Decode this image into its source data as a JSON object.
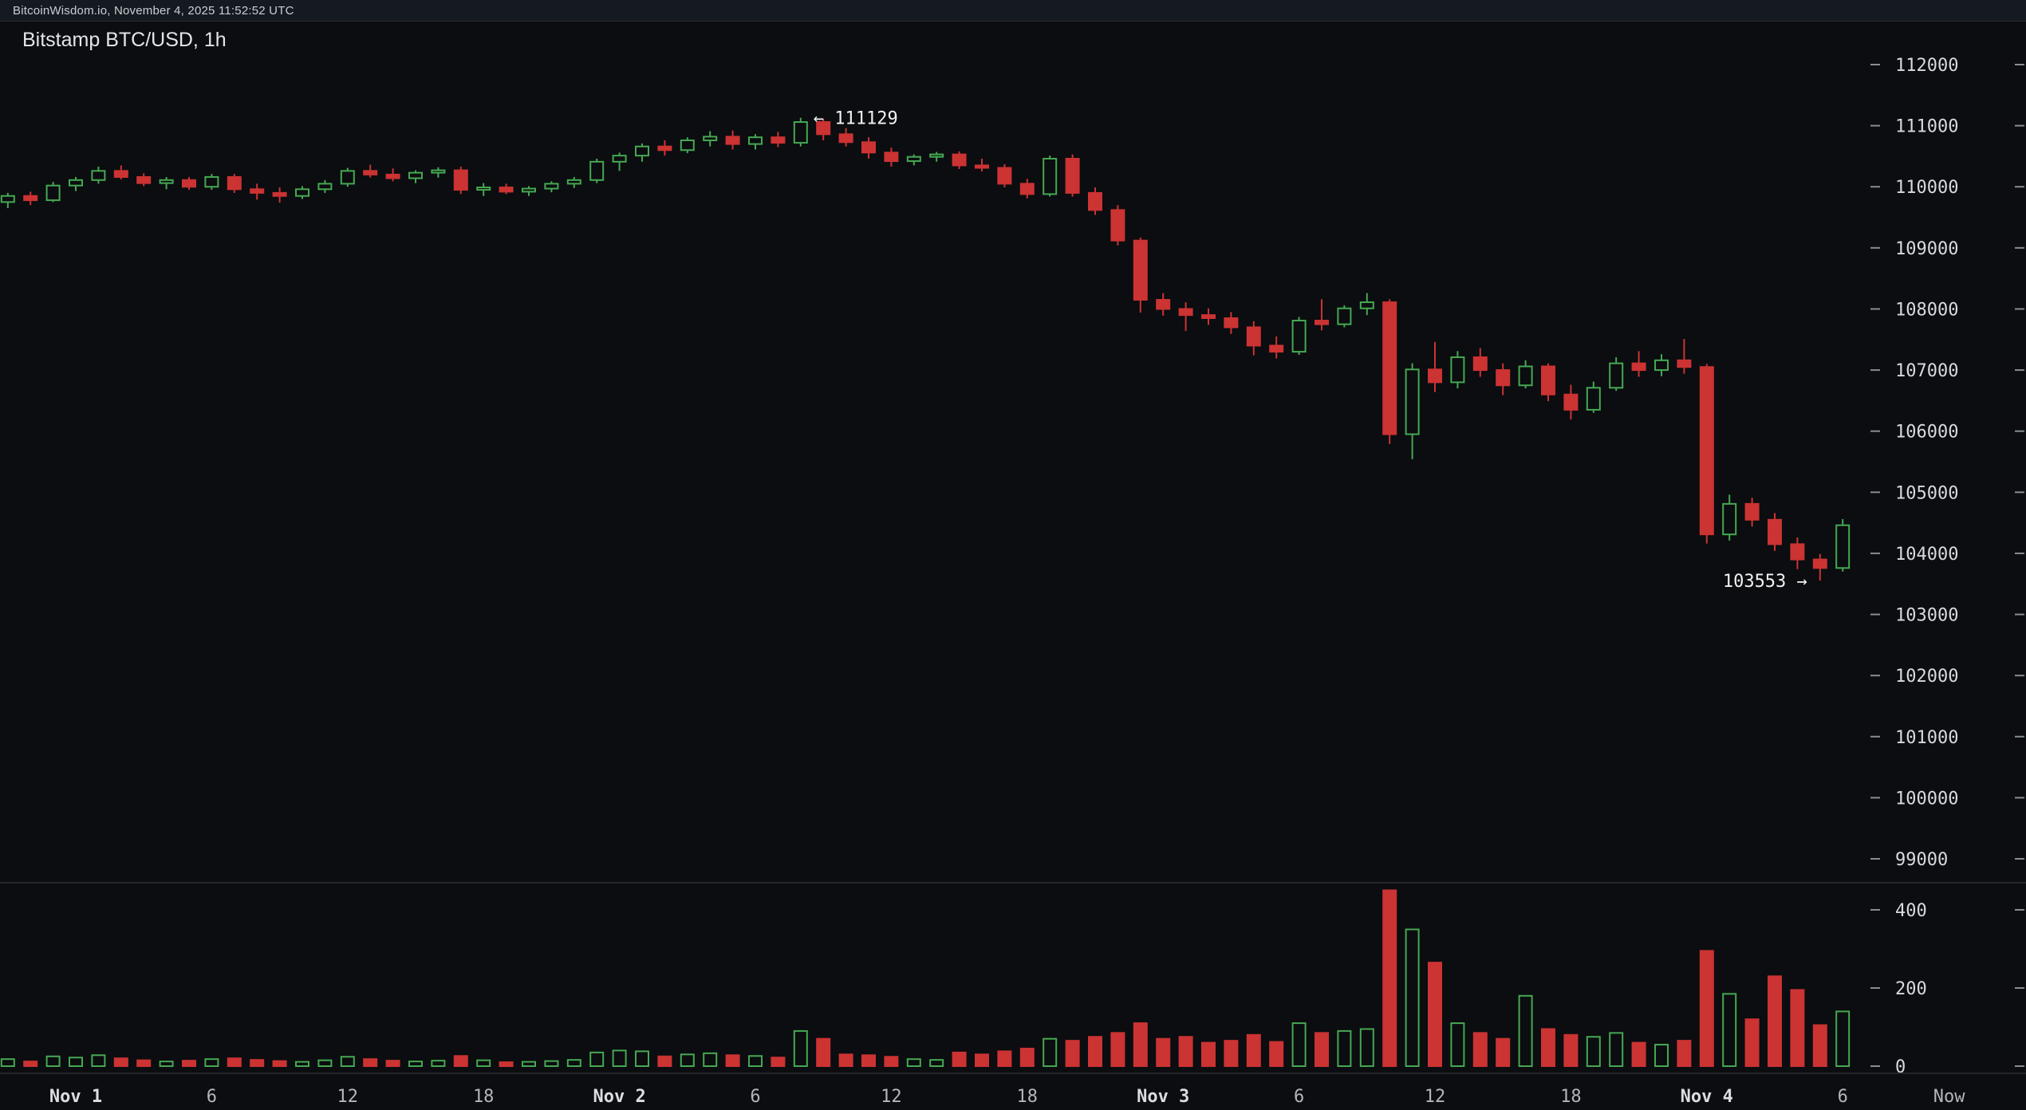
{
  "topbar": {
    "text": "BitcoinWisdom.io, November 4, 2025 11:52:52 UTC"
  },
  "chart": {
    "title": "Bitstamp BTC/USD, 1h"
  },
  "annotations": {
    "high": {
      "text": "← 111129",
      "price": 111129,
      "t": 32
    },
    "low": {
      "text": "103553 →",
      "price": 103553,
      "t": 77
    }
  },
  "colors": {
    "background": "#0b0d10",
    "up": "#46a852",
    "down": "#cc3333",
    "tick": "#878d94",
    "divider": "#23272d"
  },
  "chart_data": {
    "type": "candlestick",
    "title": "Bitstamp BTC/USD, 1h",
    "exchange": "Bitstamp",
    "pair": "BTC/USD",
    "interval": "1h",
    "annotated_high": 111129,
    "annotated_low": 103553,
    "price_axis": {
      "max_label": 112000,
      "min_label": 99000,
      "step": 1000,
      "labels": [
        "112000",
        "111000",
        "110000",
        "109000",
        "108000",
        "107000",
        "106000",
        "105000",
        "104000",
        "103000",
        "102000",
        "101000",
        "100000",
        "99000"
      ]
    },
    "volume_axis": {
      "labels": [
        "400",
        "200",
        "0"
      ],
      "max": 400,
      "min": 0
    },
    "time_axis": [
      {
        "t": 0,
        "label": "Nov 1",
        "major": true
      },
      {
        "t": 6,
        "label": "6"
      },
      {
        "t": 12,
        "label": "12"
      },
      {
        "t": 18,
        "label": "18"
      },
      {
        "t": 24,
        "label": "Nov 2",
        "major": true
      },
      {
        "t": 30,
        "label": "6"
      },
      {
        "t": 36,
        "label": "12"
      },
      {
        "t": 42,
        "label": "18"
      },
      {
        "t": 48,
        "label": "Nov 3",
        "major": true
      },
      {
        "t": 54,
        "label": "6"
      },
      {
        "t": 60,
        "label": "12"
      },
      {
        "t": 66,
        "label": "18"
      },
      {
        "t": 72,
        "label": "Nov 4",
        "major": true
      },
      {
        "t": 78,
        "label": "6"
      },
      {
        "t": 82.7,
        "label": "Now",
        "major": false
      }
    ],
    "candles_format": [
      "hours_from_nov1_00utc",
      "open",
      "high",
      "low",
      "close",
      "volume"
    ],
    "candles": [
      [
        -3,
        109750,
        109900,
        109650,
        109850,
        18
      ],
      [
        -2,
        109850,
        109920,
        109700,
        109780,
        12
      ],
      [
        -1,
        109780,
        110080,
        109750,
        110020,
        25
      ],
      [
        0,
        110020,
        110160,
        109930,
        110110,
        22
      ],
      [
        1,
        110110,
        110330,
        110050,
        110260,
        28
      ],
      [
        2,
        110260,
        110350,
        110120,
        110160,
        20
      ],
      [
        3,
        110160,
        110220,
        110010,
        110060,
        15
      ],
      [
        4,
        110060,
        110160,
        109960,
        110110,
        12
      ],
      [
        5,
        110110,
        110160,
        109950,
        110000,
        14
      ],
      [
        6,
        110000,
        110210,
        109950,
        110160,
        18
      ],
      [
        7,
        110160,
        110210,
        109900,
        109960,
        20
      ],
      [
        8,
        109960,
        110050,
        109790,
        109900,
        16
      ],
      [
        9,
        109900,
        109990,
        109740,
        109850,
        13
      ],
      [
        10,
        109850,
        110010,
        109800,
        109960,
        11
      ],
      [
        11,
        109960,
        110110,
        109900,
        110050,
        15
      ],
      [
        12,
        110050,
        110310,
        110000,
        110260,
        24
      ],
      [
        13,
        110260,
        110360,
        110150,
        110200,
        18
      ],
      [
        14,
        110200,
        110300,
        110090,
        110140,
        14
      ],
      [
        15,
        110140,
        110270,
        110060,
        110230,
        12
      ],
      [
        16,
        110230,
        110320,
        110150,
        110270,
        14
      ],
      [
        17,
        110270,
        110330,
        109880,
        109950,
        26
      ],
      [
        18,
        109950,
        110060,
        109850,
        109990,
        15
      ],
      [
        19,
        109990,
        110050,
        109880,
        109920,
        10
      ],
      [
        20,
        109920,
        110010,
        109850,
        109970,
        11
      ],
      [
        21,
        109970,
        110090,
        109910,
        110050,
        13
      ],
      [
        22,
        110050,
        110160,
        109980,
        110110,
        16
      ],
      [
        23,
        110110,
        110460,
        110060,
        110410,
        35
      ],
      [
        24,
        110410,
        110560,
        110260,
        110510,
        40
      ],
      [
        25,
        110510,
        110710,
        110410,
        110660,
        38
      ],
      [
        26,
        110660,
        110760,
        110510,
        110600,
        25
      ],
      [
        27,
        110600,
        110810,
        110550,
        110760,
        30
      ],
      [
        28,
        110760,
        110910,
        110660,
        110820,
        33
      ],
      [
        29,
        110820,
        110920,
        110610,
        110700,
        28
      ],
      [
        30,
        110700,
        110860,
        110610,
        110810,
        26
      ],
      [
        31,
        110810,
        110900,
        110650,
        110720,
        22
      ],
      [
        32,
        110720,
        111129,
        110660,
        111060,
        90
      ],
      [
        33,
        111060,
        111110,
        110760,
        110860,
        70
      ],
      [
        34,
        110860,
        110960,
        110660,
        110730,
        30
      ],
      [
        35,
        110730,
        110810,
        110460,
        110560,
        28
      ],
      [
        36,
        110560,
        110640,
        110330,
        110420,
        24
      ],
      [
        37,
        110420,
        110530,
        110350,
        110490,
        18
      ],
      [
        38,
        110490,
        110570,
        110410,
        110530,
        16
      ],
      [
        39,
        110530,
        110580,
        110290,
        110350,
        35
      ],
      [
        40,
        110350,
        110460,
        110250,
        110310,
        30
      ],
      [
        41,
        110310,
        110370,
        109990,
        110050,
        38
      ],
      [
        42,
        110050,
        110130,
        109810,
        109880,
        45
      ],
      [
        43,
        109880,
        110510,
        109840,
        110460,
        70
      ],
      [
        44,
        110460,
        110530,
        109840,
        109900,
        65
      ],
      [
        45,
        109900,
        109990,
        109540,
        109620,
        75
      ],
      [
        46,
        109620,
        109700,
        109040,
        109120,
        85
      ],
      [
        47,
        109120,
        109170,
        107940,
        108150,
        110
      ],
      [
        48,
        108150,
        108260,
        107890,
        108000,
        70
      ],
      [
        49,
        108000,
        108110,
        107640,
        107900,
        75
      ],
      [
        50,
        107900,
        108010,
        107740,
        107850,
        60
      ],
      [
        51,
        107850,
        107950,
        107590,
        107700,
        65
      ],
      [
        52,
        107700,
        107800,
        107240,
        107400,
        80
      ],
      [
        53,
        107400,
        107550,
        107190,
        107300,
        62
      ],
      [
        54,
        107300,
        107870,
        107250,
        107810,
        110
      ],
      [
        55,
        107810,
        108160,
        107650,
        107750,
        85
      ],
      [
        56,
        107750,
        108060,
        107700,
        108010,
        90
      ],
      [
        57,
        108010,
        108260,
        107900,
        108110,
        95
      ],
      [
        58,
        108110,
        108160,
        105790,
        105950,
        450
      ],
      [
        59,
        105950,
        107110,
        105540,
        107010,
        350
      ],
      [
        60,
        107010,
        107460,
        106640,
        106800,
        265
      ],
      [
        61,
        106800,
        107310,
        106700,
        107210,
        110
      ],
      [
        62,
        107210,
        107360,
        106890,
        107000,
        85
      ],
      [
        63,
        107000,
        107110,
        106590,
        106750,
        70
      ],
      [
        64,
        106750,
        107160,
        106700,
        107060,
        180
      ],
      [
        65,
        107060,
        107110,
        106490,
        106600,
        95
      ],
      [
        66,
        106600,
        106760,
        106190,
        106350,
        80
      ],
      [
        67,
        106350,
        106810,
        106300,
        106710,
        75
      ],
      [
        68,
        106710,
        107210,
        106660,
        107110,
        85
      ],
      [
        69,
        107110,
        107310,
        106890,
        107000,
        60
      ],
      [
        70,
        107000,
        107260,
        106900,
        107160,
        55
      ],
      [
        71,
        107160,
        107510,
        106940,
        107050,
        65
      ],
      [
        72,
        107050,
        107100,
        104160,
        104310,
        295
      ],
      [
        73,
        104310,
        104960,
        104210,
        104810,
        185
      ],
      [
        74,
        104810,
        104910,
        104440,
        104550,
        120
      ],
      [
        75,
        104550,
        104660,
        104040,
        104150,
        230
      ],
      [
        76,
        104150,
        104260,
        103740,
        103900,
        195
      ],
      [
        77,
        103900,
        103990,
        103553,
        103760,
        105
      ],
      [
        78,
        103760,
        104560,
        103700,
        104460,
        140
      ]
    ]
  }
}
